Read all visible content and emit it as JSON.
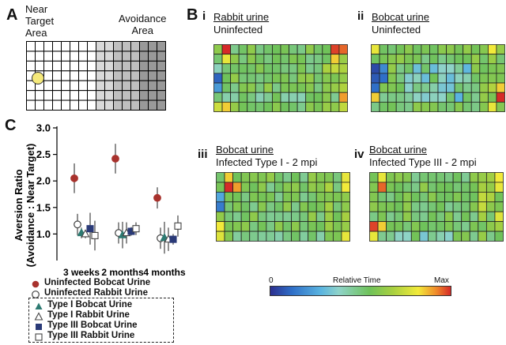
{
  "panel_a": {
    "label": "A",
    "near_label": "Near\nTarget\nArea",
    "avoid_label": "Avoidance\nArea",
    "grid": {
      "rows": 7,
      "cols": 16,
      "gray_cols": [
        [
          8,
          10,
          "#d9d9d9"
        ],
        [
          10,
          13,
          "#bfbfbf"
        ],
        [
          13,
          16,
          "#999999"
        ]
      ]
    },
    "colors": {
      "mouse": "#f5e97a"
    }
  },
  "panel_b": {
    "label": "B",
    "heatmaps": [
      {
        "roman": "i",
        "line1": "Rabbit urine",
        "line2": "Uninfected",
        "pattern": 0
      },
      {
        "roman": "ii",
        "line1": "Bobcat urine",
        "line2": "Uninfected",
        "pattern": 1
      },
      {
        "roman": "iii",
        "line1": "Bobcat urine",
        "line2": "Infected Type I - 2 mpi",
        "pattern": 2
      },
      {
        "roman": "iv",
        "line1": "Bobcat urine",
        "line2": "Infected Type III - 2 mpi",
        "pattern": 3
      }
    ],
    "colorbar": {
      "min_label": "0",
      "mid_label": "Relative Time",
      "max_label": "Max"
    }
  },
  "panel_c": {
    "label": "C"
  },
  "chart_data": {
    "type": "scatter",
    "ylabel": "Aversion Ratio\n(Avoidance : Near Target)",
    "ylim": [
      0.5,
      3.0
    ],
    "yticks": [
      "1.0",
      "1.5",
      "2.0",
      "2.5",
      "3.0"
    ],
    "categories": [
      "3 weeks",
      "2 months",
      "4 months"
    ],
    "series": [
      {
        "name": "Uninfected Bobcat Urine",
        "marker": "filled-circle",
        "color": "#a8322d",
        "values": [
          2.05,
          2.42,
          1.68
        ],
        "err": [
          0.28,
          0.28,
          0.2
        ]
      },
      {
        "name": "Uninfected Rabbit Urine",
        "marker": "open-circle",
        "color": "#555555",
        "values": [
          1.18,
          1.02,
          0.92
        ],
        "err": [
          0.2,
          0.2,
          0.2
        ]
      },
      {
        "name": "Type I Bobcat Urine",
        "marker": "filled-triangle",
        "color": "#2d7a72",
        "values": [
          1.02,
          0.98,
          0.93
        ],
        "err": [
          0.1,
          0.25,
          0.3
        ]
      },
      {
        "name": "Type I Rabbit Urine",
        "marker": "open-triangle",
        "color": "#555555",
        "values": [
          1.0,
          1.02,
          0.9
        ],
        "err": [
          0.08,
          0.2,
          0.22
        ]
      },
      {
        "name": "Type III Bobcat Urine",
        "marker": "filled-square",
        "color": "#2a3a78",
        "values": [
          1.1,
          1.05,
          0.9
        ],
        "err": [
          0.3,
          0.08,
          0.1
        ]
      },
      {
        "name": "Type III Rabbit Urine",
        "marker": "open-square",
        "color": "#555555",
        "values": [
          0.97,
          1.1,
          1.15
        ],
        "err": [
          0.28,
          0.12,
          0.2
        ]
      }
    ]
  }
}
